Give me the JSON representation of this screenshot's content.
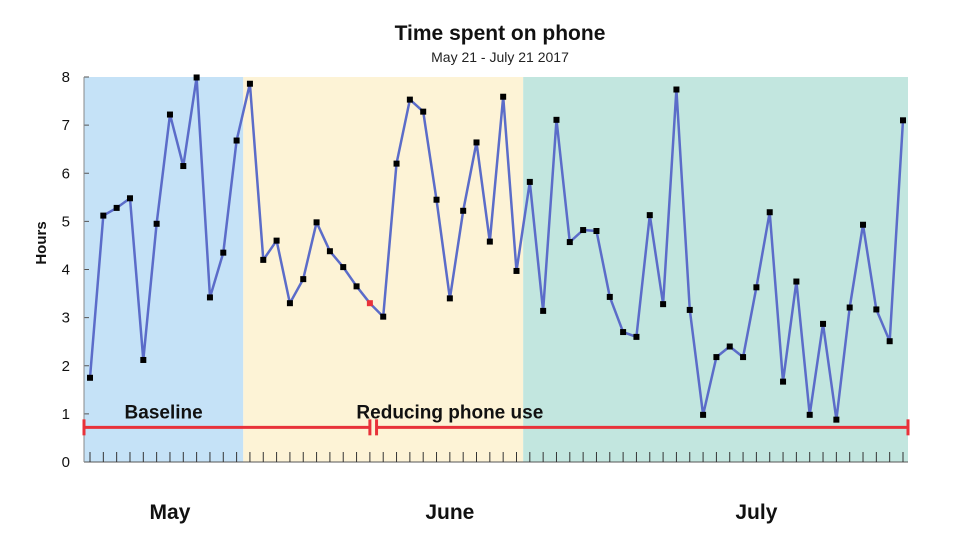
{
  "chart_data": {
    "type": "line",
    "title": "Time spent on phone",
    "subtitle": "May 21 - July 21 2017",
    "ylabel": "Hours",
    "xlabel": "",
    "ylim": [
      0,
      8
    ],
    "yticks": [
      "0",
      "1",
      "2",
      "3",
      "4",
      "5",
      "6",
      "7",
      "8"
    ],
    "x_start": "2017-05-21",
    "x_end": "2017-07-21",
    "months": [
      {
        "label": "May",
        "date": "2017-05-27"
      },
      {
        "label": "June",
        "date": "2017-06-17"
      },
      {
        "label": "July",
        "date": "2017-07-10"
      }
    ],
    "background_bands": [
      {
        "start": "2017-05-21",
        "end": "2017-06-02",
        "color": "#c5e2f7"
      },
      {
        "start": "2017-06-02",
        "end": "2017-06-23",
        "color": "#fdf3d6"
      },
      {
        "start": "2017-06-23",
        "end": "2017-07-21",
        "color": "#c2e6df"
      }
    ],
    "phases": [
      {
        "label": "Baseline",
        "start": "2017-05-21",
        "end": "2017-06-11",
        "color": "#e8323a"
      },
      {
        "label": "Reducing phone use",
        "start": "2017-06-12",
        "end": "2017-07-21",
        "color": "#e8323a"
      }
    ],
    "line_color": "#5b6cc9",
    "marker_color": "#000000",
    "highlight_color": "#e8323a",
    "highlight_date": "2017-06-11",
    "series": [
      {
        "values": [
          [
            "2017-05-21",
            1.75
          ],
          [
            "2017-05-22",
            5.12
          ],
          [
            "2017-05-23",
            5.28
          ],
          [
            "2017-05-24",
            5.48
          ],
          [
            "2017-05-25",
            2.12
          ],
          [
            "2017-05-26",
            4.95
          ],
          [
            "2017-05-27",
            7.22
          ],
          [
            "2017-05-28",
            6.15
          ],
          [
            "2017-05-29",
            7.99
          ],
          [
            "2017-05-30",
            3.42
          ],
          [
            "2017-05-31",
            4.35
          ],
          [
            "2017-06-01",
            6.68
          ],
          [
            "2017-06-02",
            7.86
          ],
          [
            "2017-06-03",
            4.2
          ],
          [
            "2017-06-04",
            4.6
          ],
          [
            "2017-06-05",
            3.3
          ],
          [
            "2017-06-06",
            3.8
          ],
          [
            "2017-06-07",
            4.98
          ],
          [
            "2017-06-08",
            4.38
          ],
          [
            "2017-06-09",
            4.05
          ],
          [
            "2017-06-10",
            3.65
          ],
          [
            "2017-06-11",
            3.3
          ],
          [
            "2017-06-12",
            3.02
          ],
          [
            "2017-06-13",
            6.2
          ],
          [
            "2017-06-14",
            7.53
          ],
          [
            "2017-06-15",
            7.28
          ],
          [
            "2017-06-16",
            5.45
          ],
          [
            "2017-06-17",
            3.4
          ],
          [
            "2017-06-18",
            5.22
          ],
          [
            "2017-06-19",
            6.64
          ],
          [
            "2017-06-20",
            4.58
          ],
          [
            "2017-06-21",
            7.59
          ],
          [
            "2017-06-22",
            3.97
          ],
          [
            "2017-06-23",
            5.82
          ],
          [
            "2017-06-24",
            3.14
          ],
          [
            "2017-06-25",
            7.11
          ],
          [
            "2017-06-26",
            4.57
          ],
          [
            "2017-06-27",
            4.82
          ],
          [
            "2017-06-28",
            4.8
          ],
          [
            "2017-06-29",
            3.43
          ],
          [
            "2017-06-30",
            2.7
          ],
          [
            "2017-07-01",
            2.6
          ],
          [
            "2017-07-02",
            5.13
          ],
          [
            "2017-07-03",
            3.28
          ],
          [
            "2017-07-04",
            7.74
          ],
          [
            "2017-07-05",
            3.16
          ],
          [
            "2017-07-06",
            0.98
          ],
          [
            "2017-07-07",
            2.18
          ],
          [
            "2017-07-08",
            2.4
          ],
          [
            "2017-07-09",
            2.18
          ],
          [
            "2017-07-10",
            3.63
          ],
          [
            "2017-07-11",
            5.19
          ],
          [
            "2017-07-12",
            1.67
          ],
          [
            "2017-07-13",
            3.75
          ],
          [
            "2017-07-14",
            0.98
          ],
          [
            "2017-07-15",
            2.87
          ],
          [
            "2017-07-16",
            0.88
          ],
          [
            "2017-07-17",
            3.21
          ],
          [
            "2017-07-18",
            4.93
          ],
          [
            "2017-07-19",
            3.17
          ],
          [
            "2017-07-20",
            2.51
          ],
          [
            "2017-07-21",
            7.1
          ]
        ]
      }
    ]
  }
}
